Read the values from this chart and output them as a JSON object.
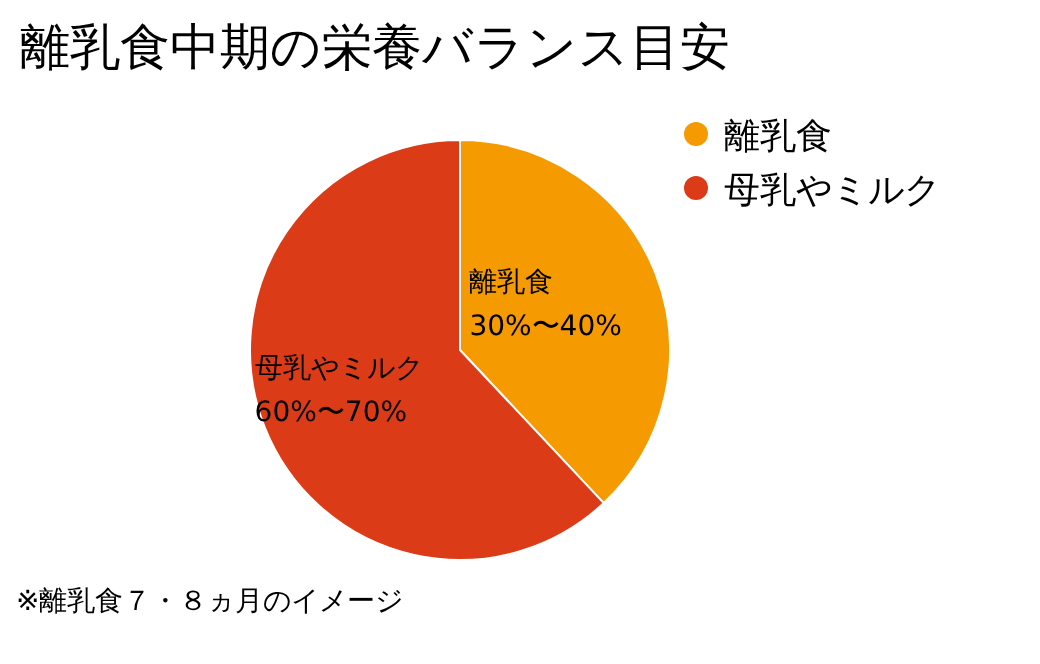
{
  "chart_data": {
    "type": "pie",
    "title": "離乳食中期の栄養バランス目安",
    "categories": [
      "離乳食",
      "母乳やミルク"
    ],
    "values": [
      38,
      62
    ],
    "colors": [
      "#f59a00",
      "#dc3b18"
    ],
    "legend": "top right",
    "annotations": [
      "30%〜40%",
      "60%〜70%",
      "※離乳食７・８ヵ月のイメージ"
    ]
  }
}
